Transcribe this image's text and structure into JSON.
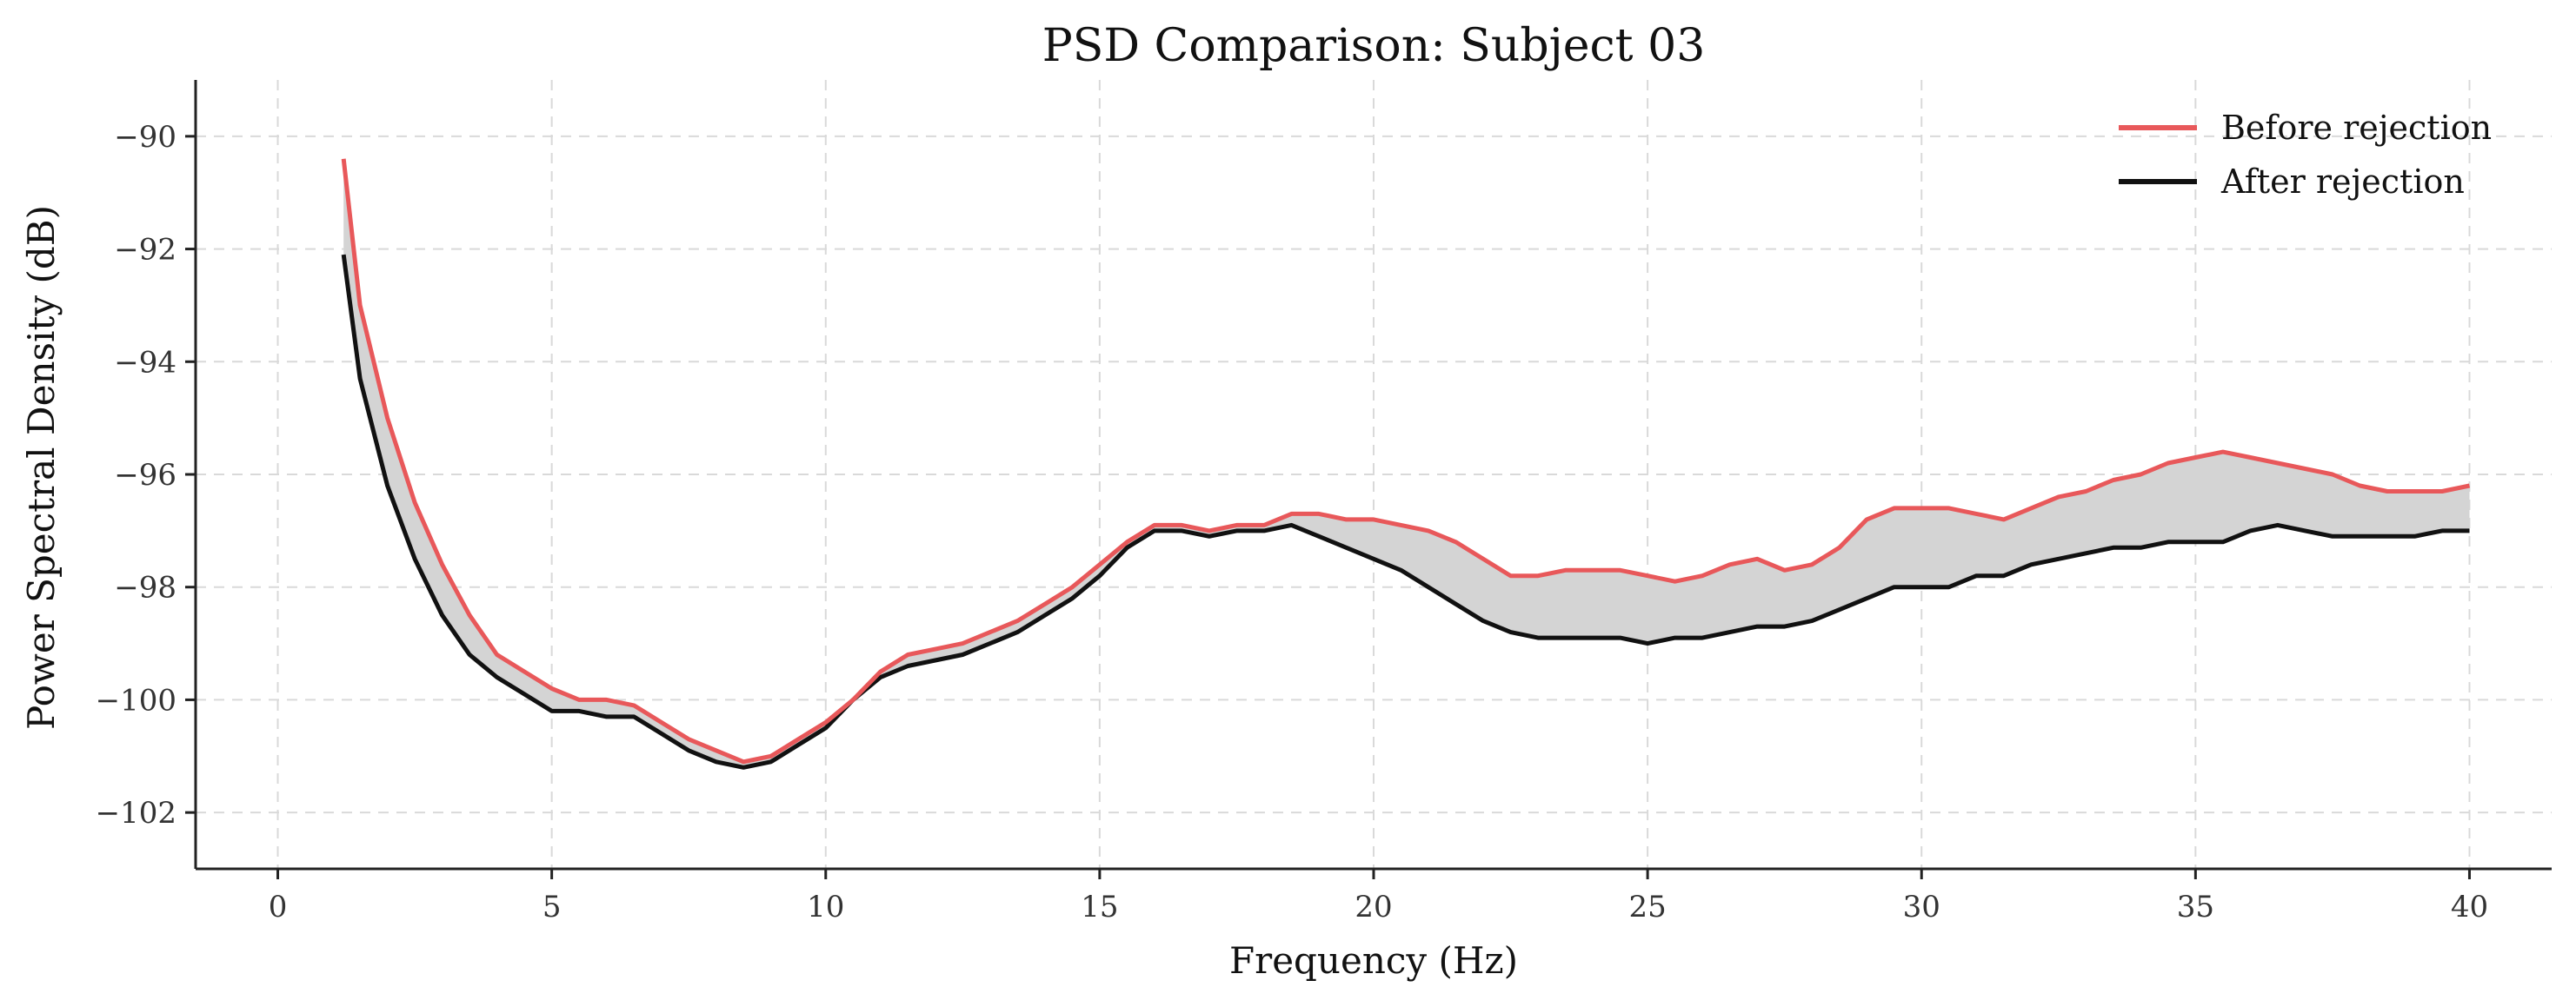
{
  "chart_data": {
    "type": "line",
    "title": "PSD Comparison: Subject 03",
    "xlabel": "Frequency (Hz)",
    "ylabel": "Power Spectral Density (dB)",
    "xlim": [
      -1.5,
      41.5
    ],
    "ylim": [
      -103,
      -89
    ],
    "xticks": [
      0,
      5,
      10,
      15,
      20,
      25,
      30,
      35,
      40
    ],
    "xtick_labels": [
      "0",
      "5",
      "10",
      "15",
      "20",
      "25",
      "30",
      "35",
      "40"
    ],
    "yticks": [
      -102,
      -100,
      -98,
      -96,
      -94,
      -92,
      -90
    ],
    "ytick_labels": [
      "−102",
      "−100",
      "−98",
      "−96",
      "−94",
      "−92",
      "−90"
    ],
    "grid": true,
    "legend_position": "top-right",
    "fill_between": {
      "color": "#d4d4d4"
    },
    "series": [
      {
        "name": "Before rejection",
        "color": "#e8585a",
        "x": [
          1.2,
          1.5,
          2,
          2.5,
          3,
          3.5,
          4,
          4.5,
          5,
          5.5,
          6,
          6.5,
          7,
          7.5,
          8,
          8.5,
          9,
          9.5,
          10,
          10.5,
          11,
          11.5,
          12,
          12.5,
          13,
          13.5,
          14,
          14.5,
          15,
          15.5,
          16,
          16.5,
          17,
          17.5,
          18,
          18.5,
          19,
          19.5,
          20,
          20.5,
          21,
          21.5,
          22,
          22.5,
          23,
          23.5,
          24,
          24.5,
          25,
          25.5,
          26,
          26.5,
          27,
          27.5,
          28,
          28.5,
          29,
          29.5,
          30,
          30.5,
          31,
          31.5,
          32,
          32.5,
          33,
          33.5,
          34,
          34.5,
          35,
          35.5,
          36,
          36.5,
          37,
          37.5,
          38,
          38.5,
          39,
          39.5,
          40
        ],
        "y": [
          -90.4,
          -93.0,
          -95.0,
          -96.5,
          -97.6,
          -98.5,
          -99.2,
          -99.5,
          -99.8,
          -100.0,
          -100.0,
          -100.1,
          -100.4,
          -100.7,
          -100.9,
          -101.1,
          -101.0,
          -100.7,
          -100.4,
          -100.0,
          -99.5,
          -99.2,
          -99.1,
          -99.0,
          -98.8,
          -98.6,
          -98.3,
          -98.0,
          -97.6,
          -97.2,
          -96.9,
          -96.9,
          -97.0,
          -96.9,
          -96.9,
          -96.7,
          -96.7,
          -96.8,
          -96.8,
          -96.9,
          -97.0,
          -97.2,
          -97.5,
          -97.8,
          -97.8,
          -97.7,
          -97.7,
          -97.7,
          -97.8,
          -97.9,
          -97.8,
          -97.6,
          -97.5,
          -97.7,
          -97.6,
          -97.3,
          -96.8,
          -96.6,
          -96.6,
          -96.6,
          -96.7,
          -96.8,
          -96.6,
          -96.4,
          -96.3,
          -96.1,
          -96.0,
          -95.8,
          -95.7,
          -95.6,
          -95.7,
          -95.8,
          -95.9,
          -96.0,
          -96.2,
          -96.3,
          -96.3,
          -96.3,
          -96.2
        ]
      },
      {
        "name": "After rejection",
        "color": "#111111",
        "x": [
          1.2,
          1.5,
          2,
          2.5,
          3,
          3.5,
          4,
          4.5,
          5,
          5.5,
          6,
          6.5,
          7,
          7.5,
          8,
          8.5,
          9,
          9.5,
          10,
          10.5,
          11,
          11.5,
          12,
          12.5,
          13,
          13.5,
          14,
          14.5,
          15,
          15.5,
          16,
          16.5,
          17,
          17.5,
          18,
          18.5,
          19,
          19.5,
          20,
          20.5,
          21,
          21.5,
          22,
          22.5,
          23,
          23.5,
          24,
          24.5,
          25,
          25.5,
          26,
          26.5,
          27,
          27.5,
          28,
          28.5,
          29,
          29.5,
          30,
          30.5,
          31,
          31.5,
          32,
          32.5,
          33,
          33.5,
          34,
          34.5,
          35,
          35.5,
          36,
          36.5,
          37,
          37.5,
          38,
          38.5,
          39,
          39.5,
          40
        ],
        "y": [
          -92.1,
          -94.3,
          -96.2,
          -97.5,
          -98.5,
          -99.2,
          -99.6,
          -99.9,
          -100.2,
          -100.2,
          -100.3,
          -100.3,
          -100.6,
          -100.9,
          -101.1,
          -101.2,
          -101.1,
          -100.8,
          -100.5,
          -100.0,
          -99.6,
          -99.4,
          -99.3,
          -99.2,
          -99.0,
          -98.8,
          -98.5,
          -98.2,
          -97.8,
          -97.3,
          -97.0,
          -97.0,
          -97.1,
          -97.0,
          -97.0,
          -96.9,
          -97.1,
          -97.3,
          -97.5,
          -97.7,
          -98.0,
          -98.3,
          -98.6,
          -98.8,
          -98.9,
          -98.9,
          -98.9,
          -98.9,
          -99.0,
          -98.9,
          -98.9,
          -98.8,
          -98.7,
          -98.7,
          -98.6,
          -98.4,
          -98.2,
          -98.0,
          -98.0,
          -98.0,
          -97.8,
          -97.8,
          -97.6,
          -97.5,
          -97.4,
          -97.3,
          -97.3,
          -97.2,
          -97.2,
          -97.2,
          -97.0,
          -96.9,
          -97.0,
          -97.1,
          -97.1,
          -97.1,
          -97.1,
          -97.0,
          -97.0
        ]
      }
    ]
  }
}
